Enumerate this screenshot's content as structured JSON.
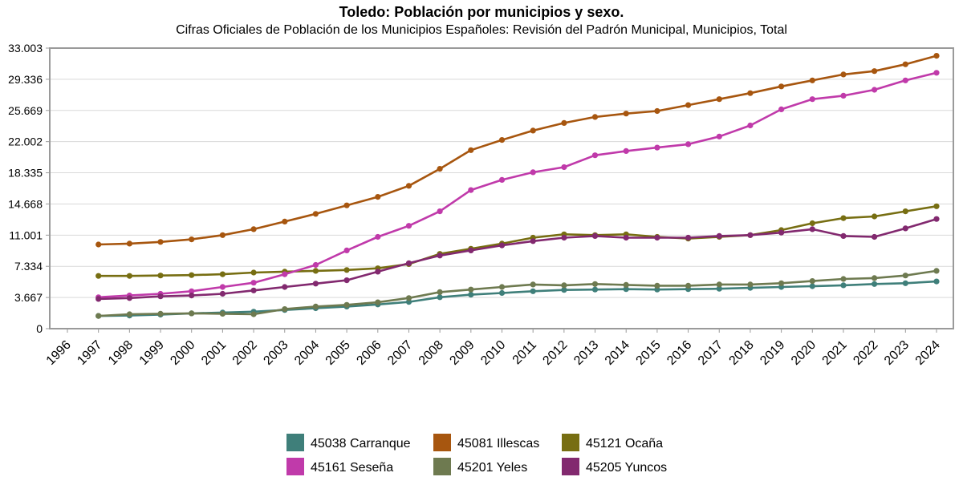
{
  "chart_data": {
    "type": "line",
    "title": "Toledo: Población por municipios y sexo.",
    "subtitle": "Cifras Oficiales de Población de los Municipios Españoles: Revisión del Padrón Municipal, Municipios, Total",
    "xlabel": "",
    "ylabel": "",
    "ylim": [
      0,
      33003
    ],
    "yticks": [
      "0",
      "3.667",
      "7.334",
      "11.001",
      "14.668",
      "18.335",
      "22.002",
      "25.669",
      "29.336",
      "33.003"
    ],
    "ytick_values": [
      0,
      3667,
      7334,
      11001,
      14668,
      18335,
      22002,
      25669,
      29336,
      33003
    ],
    "x": [
      "1996",
      "1997",
      "1998",
      "1999",
      "2000",
      "2001",
      "2002",
      "2003",
      "2004",
      "2005",
      "2006",
      "2007",
      "2008",
      "2009",
      "2010",
      "2011",
      "2012",
      "2013",
      "2014",
      "2015",
      "2016",
      "2017",
      "2018",
      "2019",
      "2020",
      "2021",
      "2022",
      "2023",
      "2024"
    ],
    "grid": true,
    "legend_position": "bottom",
    "series": [
      {
        "name": "45038 Carranque",
        "color": "#3f7f7a",
        "values": [
          null,
          1500,
          1550,
          1650,
          1800,
          1900,
          2000,
          2200,
          2400,
          2600,
          2850,
          3150,
          3700,
          4000,
          4200,
          4400,
          4550,
          4600,
          4650,
          4600,
          4650,
          4700,
          4800,
          4900,
          5000,
          5100,
          5250,
          5350,
          5550
        ]
      },
      {
        "name": "45081 Illescas",
        "color": "#a7560f",
        "values": [
          null,
          9900,
          10000,
          10200,
          10500,
          11000,
          11700,
          12600,
          13500,
          14500,
          15500,
          16800,
          18800,
          21000,
          22200,
          23300,
          24200,
          24900,
          25300,
          25600,
          26300,
          27000,
          27700,
          28500,
          29200,
          29900,
          30300,
          31100,
          32100
        ]
      },
      {
        "name": "45121 Ocaña",
        "color": "#776e12",
        "values": [
          null,
          6200,
          6200,
          6250,
          6300,
          6400,
          6600,
          6700,
          6800,
          6900,
          7100,
          7600,
          8800,
          9400,
          10000,
          10700,
          11100,
          11000,
          11100,
          10800,
          10600,
          10800,
          11000,
          11600,
          12400,
          13000,
          13200,
          13800,
          14400
        ]
      },
      {
        "name": "45161 Seseña",
        "color": "#c03aaa",
        "values": [
          null,
          3700,
          3900,
          4100,
          4400,
          4900,
          5400,
          6400,
          7500,
          9200,
          10800,
          12100,
          13800,
          16300,
          17500,
          18400,
          19000,
          20400,
          20900,
          21300,
          21700,
          22600,
          23900,
          25800,
          27000,
          27400,
          28100,
          29200,
          30100
        ]
      },
      {
        "name": "45201 Yeles",
        "color": "#6e7a50",
        "values": [
          null,
          1500,
          1700,
          1750,
          1800,
          1750,
          1700,
          2300,
          2600,
          2800,
          3100,
          3600,
          4300,
          4600,
          4900,
          5200,
          5100,
          5250,
          5150,
          5050,
          5050,
          5200,
          5200,
          5350,
          5600,
          5850,
          5950,
          6250,
          6800
        ]
      },
      {
        "name": "45205 Yuncos",
        "color": "#82296f",
        "values": [
          null,
          3500,
          3600,
          3800,
          3900,
          4100,
          4500,
          4900,
          5300,
          5700,
          6700,
          7700,
          8600,
          9200,
          9800,
          10300,
          10700,
          10900,
          10700,
          10700,
          10700,
          10900,
          11000,
          11300,
          11700,
          10900,
          10800,
          11800,
          12900
        ]
      }
    ]
  }
}
